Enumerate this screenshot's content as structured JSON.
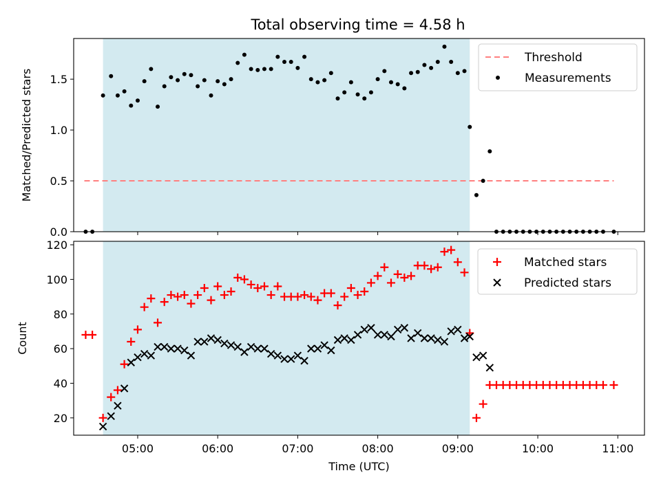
{
  "chart_data": [
    {
      "type": "scatter",
      "title": "Total observing time = 4.58 h",
      "xlabel": "",
      "ylabel": "Matched/Predicted stars",
      "xlim": [
        "04:12",
        "11:20"
      ],
      "ylim": [
        0,
        1.9
      ],
      "yticks": [
        "0.0",
        "0.5",
        "1.0",
        "1.5"
      ],
      "shaded_span": [
        "04:34",
        "09:09"
      ],
      "shade_color": "#d3eaf0",
      "legend_position": "top-right",
      "series": [
        {
          "name": "Threshold",
          "kind": "dashed-line",
          "color": "#ff7f7f",
          "x": [
            "04:20",
            "10:57"
          ],
          "y": [
            0.5,
            0.5
          ]
        },
        {
          "name": "Measurements",
          "kind": "dots",
          "color": "#000000",
          "x": [
            "04:21",
            "04:26",
            "04:34",
            "04:40",
            "04:45",
            "04:50",
            "04:55",
            "05:00",
            "05:05",
            "05:10",
            "05:15",
            "05:20",
            "05:25",
            "05:30",
            "05:35",
            "05:40",
            "05:45",
            "05:50",
            "05:55",
            "06:00",
            "06:05",
            "06:10",
            "06:15",
            "06:20",
            "06:25",
            "06:30",
            "06:35",
            "06:40",
            "06:45",
            "06:50",
            "06:55",
            "07:00",
            "07:05",
            "07:10",
            "07:15",
            "07:20",
            "07:25",
            "07:30",
            "07:35",
            "07:40",
            "07:45",
            "07:50",
            "07:55",
            "08:00",
            "08:05",
            "08:10",
            "08:15",
            "08:20",
            "08:25",
            "08:30",
            "08:35",
            "08:40",
            "08:45",
            "08:50",
            "08:55",
            "09:00",
            "09:05",
            "09:09",
            "09:14",
            "09:19",
            "09:24",
            "09:29",
            "09:34",
            "09:39",
            "09:44",
            "09:49",
            "09:54",
            "09:59",
            "10:04",
            "10:09",
            "10:14",
            "10:19",
            "10:24",
            "10:29",
            "10:34",
            "10:39",
            "10:44",
            "10:49",
            "10:57"
          ],
          "y": [
            0.0,
            0.0,
            1.34,
            1.53,
            1.34,
            1.38,
            1.24,
            1.29,
            1.48,
            1.6,
            1.23,
            1.43,
            1.52,
            1.49,
            1.55,
            1.54,
            1.43,
            1.49,
            1.34,
            1.48,
            1.45,
            1.5,
            1.66,
            1.74,
            1.6,
            1.59,
            1.6,
            1.6,
            1.72,
            1.67,
            1.67,
            1.61,
            1.72,
            1.5,
            1.47,
            1.49,
            1.56,
            1.31,
            1.37,
            1.47,
            1.35,
            1.31,
            1.37,
            1.5,
            1.58,
            1.47,
            1.45,
            1.41,
            1.56,
            1.57,
            1.64,
            1.61,
            1.67,
            1.82,
            1.67,
            1.56,
            1.58,
            1.03,
            0.36,
            0.5,
            0.79,
            0.0,
            0.0,
            0.0,
            0.0,
            0.0,
            0.0,
            0.0,
            0.0,
            0.0,
            0.0,
            0.0,
            0.0,
            0.0,
            0.0,
            0.0,
            0.0,
            0.0,
            0.0
          ]
        }
      ]
    },
    {
      "type": "scatter",
      "title": "",
      "xlabel": "Time (UTC)",
      "ylabel": "Count",
      "xlim": [
        "04:12",
        "11:20"
      ],
      "ylim": [
        10,
        122
      ],
      "yticks": [
        "20",
        "40",
        "60",
        "80",
        "100",
        "120"
      ],
      "xticks": [
        "05:00",
        "06:00",
        "07:00",
        "08:00",
        "09:00",
        "10:00",
        "11:00"
      ],
      "shaded_span": [
        "04:34",
        "09:09"
      ],
      "shade_color": "#d3eaf0",
      "legend_position": "top-right",
      "series": [
        {
          "name": "Matched stars",
          "kind": "plus",
          "color": "#ff0000",
          "x": [
            "04:21",
            "04:26",
            "04:34",
            "04:40",
            "04:45",
            "04:50",
            "04:55",
            "05:00",
            "05:05",
            "05:10",
            "05:15",
            "05:20",
            "05:25",
            "05:30",
            "05:35",
            "05:40",
            "05:45",
            "05:50",
            "05:55",
            "06:00",
            "06:05",
            "06:10",
            "06:15",
            "06:20",
            "06:25",
            "06:30",
            "06:35",
            "06:40",
            "06:45",
            "06:50",
            "06:55",
            "07:00",
            "07:05",
            "07:10",
            "07:15",
            "07:20",
            "07:25",
            "07:30",
            "07:35",
            "07:40",
            "07:45",
            "07:50",
            "07:55",
            "08:00",
            "08:05",
            "08:10",
            "08:15",
            "08:20",
            "08:25",
            "08:30",
            "08:35",
            "08:40",
            "08:45",
            "08:50",
            "08:55",
            "09:00",
            "09:05",
            "09:09",
            "09:14",
            "09:19",
            "09:24",
            "09:29",
            "09:34",
            "09:39",
            "09:44",
            "09:49",
            "09:54",
            "09:59",
            "10:04",
            "10:09",
            "10:14",
            "10:19",
            "10:24",
            "10:29",
            "10:34",
            "10:39",
            "10:44",
            "10:49",
            "10:57"
          ],
          "y": [
            68,
            68,
            20,
            32,
            36,
            51,
            64,
            71,
            84,
            89,
            75,
            87,
            91,
            90,
            91,
            86,
            91,
            95,
            88,
            96,
            91,
            93,
            101,
            100,
            97,
            95,
            96,
            91,
            96,
            90,
            90,
            90,
            91,
            90,
            88,
            92,
            92,
            85,
            90,
            95,
            91,
            93,
            98,
            102,
            107,
            98,
            103,
            101,
            102,
            108,
            108,
            106,
            107,
            116,
            117,
            110,
            104,
            69,
            20,
            28,
            39,
            39,
            39,
            39,
            39,
            39,
            39,
            39,
            39,
            39,
            39,
            39,
            39,
            39,
            39,
            39,
            39,
            39,
            39
          ]
        },
        {
          "name": "Predicted stars",
          "kind": "x",
          "color": "#000000",
          "x": [
            "04:34",
            "04:40",
            "04:45",
            "04:50",
            "04:55",
            "05:00",
            "05:05",
            "05:10",
            "05:15",
            "05:20",
            "05:25",
            "05:30",
            "05:35",
            "05:40",
            "05:45",
            "05:50",
            "05:55",
            "06:00",
            "06:05",
            "06:10",
            "06:15",
            "06:20",
            "06:25",
            "06:30",
            "06:35",
            "06:40",
            "06:45",
            "06:50",
            "06:55",
            "07:00",
            "07:05",
            "07:10",
            "07:15",
            "07:20",
            "07:25",
            "07:30",
            "07:35",
            "07:40",
            "07:45",
            "07:50",
            "07:55",
            "08:00",
            "08:05",
            "08:10",
            "08:15",
            "08:20",
            "08:25",
            "08:30",
            "08:35",
            "08:40",
            "08:45",
            "08:50",
            "08:55",
            "09:00",
            "09:05",
            "09:09",
            "09:14",
            "09:19",
            "09:24"
          ],
          "y": [
            15,
            21,
            27,
            37,
            52,
            55,
            57,
            56,
            61,
            61,
            60,
            60,
            59,
            56,
            64,
            64,
            66,
            65,
            63,
            62,
            61,
            58,
            61,
            60,
            60,
            57,
            56,
            54,
            54,
            56,
            53,
            60,
            60,
            62,
            59,
            65,
            66,
            65,
            68,
            71,
            72,
            68,
            68,
            67,
            71,
            72,
            66,
            69,
            66,
            66,
            65,
            64,
            70,
            71,
            66,
            67,
            55,
            56,
            49
          ]
        }
      ]
    }
  ]
}
